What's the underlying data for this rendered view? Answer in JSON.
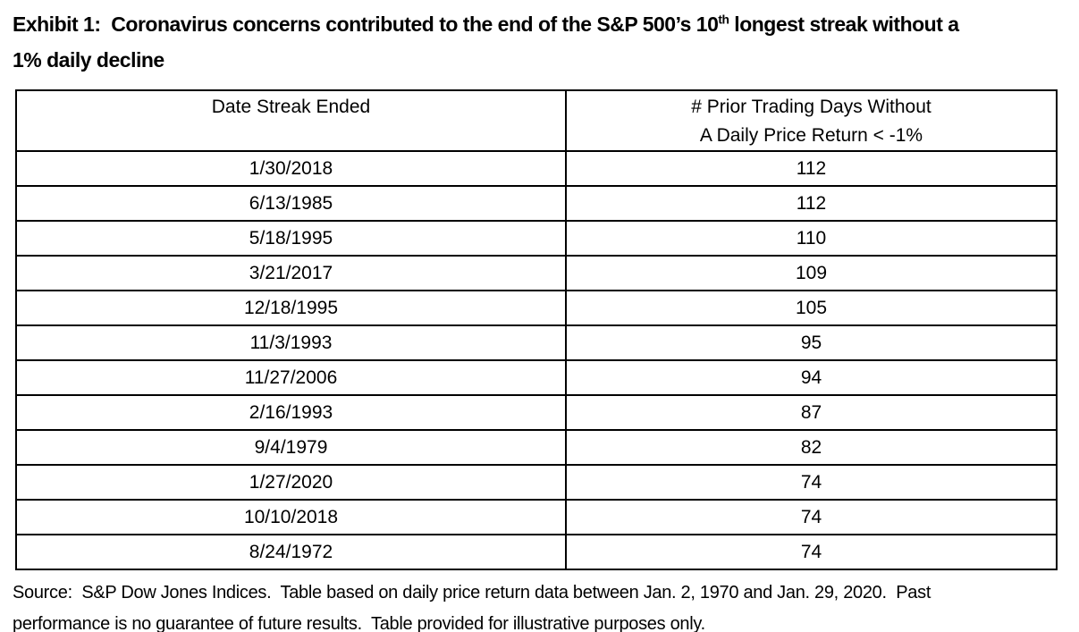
{
  "colors": {
    "text": "#000000",
    "border": "#000000",
    "background": "#ffffff"
  },
  "exhibit": {
    "title_prefix": "Exhibit 1:  Coronavirus concerns contributed to the end of the S&P 500’s 10",
    "title_superscript": "th",
    "title_line1_rest": " longest streak without a",
    "title_line2": "1% daily decline"
  },
  "chart_data": {
    "type": "table",
    "title": "Exhibit 1: Coronavirus concerns contributed to the end of the S&P 500’s 10th longest streak without a 1% daily decline",
    "header": {
      "col1": "Date Streak Ended",
      "col2_line1": "# Prior Trading Days Without",
      "col2_line2": "A Daily Price Return < -1%"
    },
    "rows": [
      {
        "date": "1/30/2018",
        "days": 112
      },
      {
        "date": "6/13/1985",
        "days": 112
      },
      {
        "date": "5/18/1995",
        "days": 110
      },
      {
        "date": "3/21/2017",
        "days": 109
      },
      {
        "date": "12/18/1995",
        "days": 105
      },
      {
        "date": "11/3/1993",
        "days": 95
      },
      {
        "date": "11/27/2006",
        "days": 94
      },
      {
        "date": "2/16/1993",
        "days": 87
      },
      {
        "date": "9/4/1979",
        "days": 82
      },
      {
        "date": "1/27/2020",
        "days": 74
      },
      {
        "date": "10/10/2018",
        "days": 74
      },
      {
        "date": "8/24/1972",
        "days": 74
      }
    ]
  },
  "footer": {
    "line1": "Source:  S&P Dow Jones Indices.  Table based on daily price return data between Jan. 2, 1970 and Jan. 29, 2020.  Past",
    "line2": "performance is no guarantee of future results.  Table provided for illustrative purposes only."
  }
}
